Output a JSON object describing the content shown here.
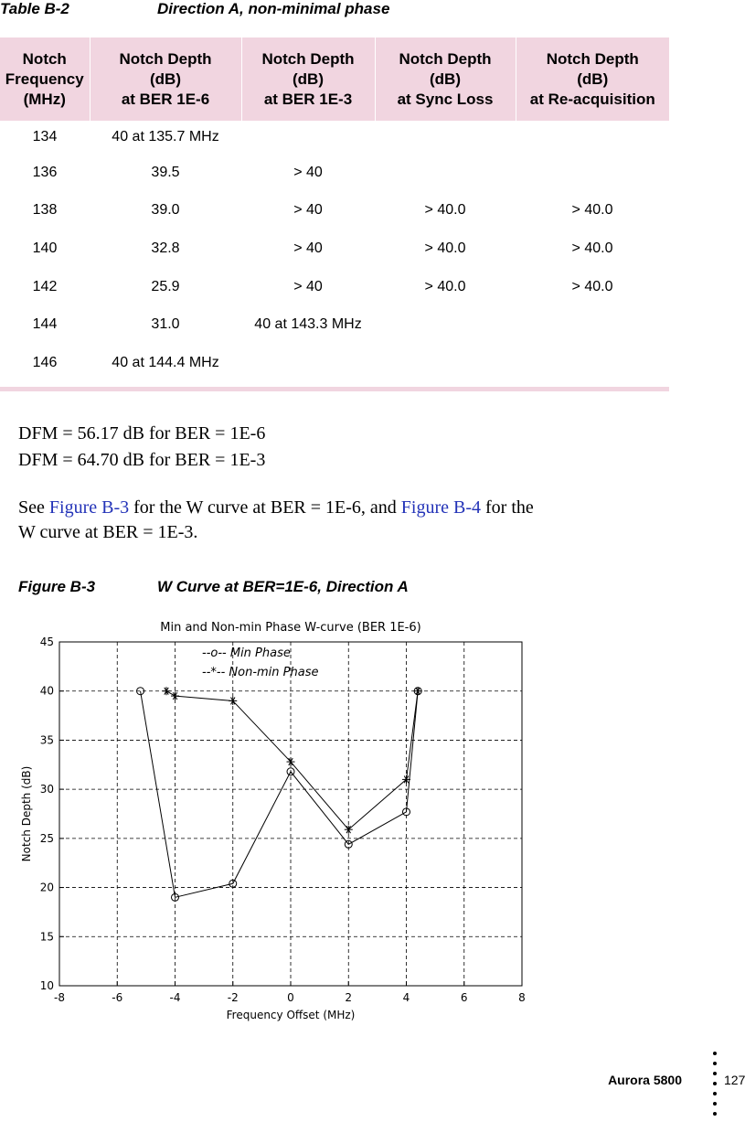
{
  "table": {
    "label": "Table B-2",
    "title": "Direction A, non-minimal phase",
    "headers": [
      "Notch\nFrequency\n(MHz)",
      "Notch Depth\n(dB)\nat BER 1E-6",
      "Notch Depth\n(dB)\nat BER 1E-3",
      "Notch Depth\n(dB)\nat Sync Loss",
      "Notch Depth\n(dB)\nat Re-acquisition"
    ],
    "rows": [
      [
        "134",
        "40 at 135.7 MHz",
        "",
        "",
        ""
      ],
      [
        "136",
        "39.5",
        "> 40",
        "",
        ""
      ],
      [
        "138",
        "39.0",
        "> 40",
        "> 40.0",
        "> 40.0"
      ],
      [
        "140",
        "32.8",
        "> 40",
        "> 40.0",
        "> 40.0"
      ],
      [
        "142",
        "25.9",
        "> 40",
        "> 40.0",
        "> 40.0"
      ],
      [
        "144",
        "31.0",
        "40 at 143.3 MHz",
        "",
        ""
      ],
      [
        "146",
        "40 at 144.4 MHz",
        "",
        "",
        ""
      ]
    ]
  },
  "text": {
    "dfm1": "DFM = 56.17 dB for BER = 1E-6",
    "dfm2": "DFM = 64.70 dB for BER = 1E-3",
    "see_a": "See ",
    "link1": "Figure B-3",
    "see_b": " for the W curve at BER = 1E-6, and ",
    "link2": "Figure B-4",
    "see_c": " for the",
    "see_line2": "W curve at BER = 1E-3."
  },
  "figure": {
    "label": "Figure B-3",
    "title": "W Curve at BER=1E-6, Direction A"
  },
  "chart_data": {
    "type": "line",
    "title": "Min and Non-min Phase W-curve (BER 1E-6)",
    "xlabel": "Frequency Offset (MHz)",
    "ylabel": "Notch Depth (dB)",
    "xlim": [
      -8,
      8
    ],
    "ylim": [
      10,
      45
    ],
    "xticks": [
      -8,
      -6,
      -4,
      -2,
      0,
      2,
      4,
      6,
      8
    ],
    "yticks": [
      10,
      15,
      20,
      25,
      30,
      35,
      40,
      45
    ],
    "grid": true,
    "legend_position": "top-left",
    "series": [
      {
        "name": "--o-- Min Phase",
        "marker": "circle",
        "x": [
          -5.2,
          -4.0,
          -2.0,
          0.0,
          2.0,
          4.0,
          4.4
        ],
        "y": [
          40.0,
          19.0,
          20.4,
          31.8,
          24.4,
          27.7,
          40.0
        ]
      },
      {
        "name": "--*-- Non-min Phase",
        "marker": "star",
        "x": [
          -4.3,
          -4.0,
          -2.0,
          0.0,
          2.0,
          4.0,
          4.4
        ],
        "y": [
          40.0,
          39.5,
          39.0,
          32.8,
          25.9,
          31.0,
          40.0
        ]
      }
    ]
  },
  "footer": {
    "product": "Aurora 5800",
    "page": "127"
  }
}
